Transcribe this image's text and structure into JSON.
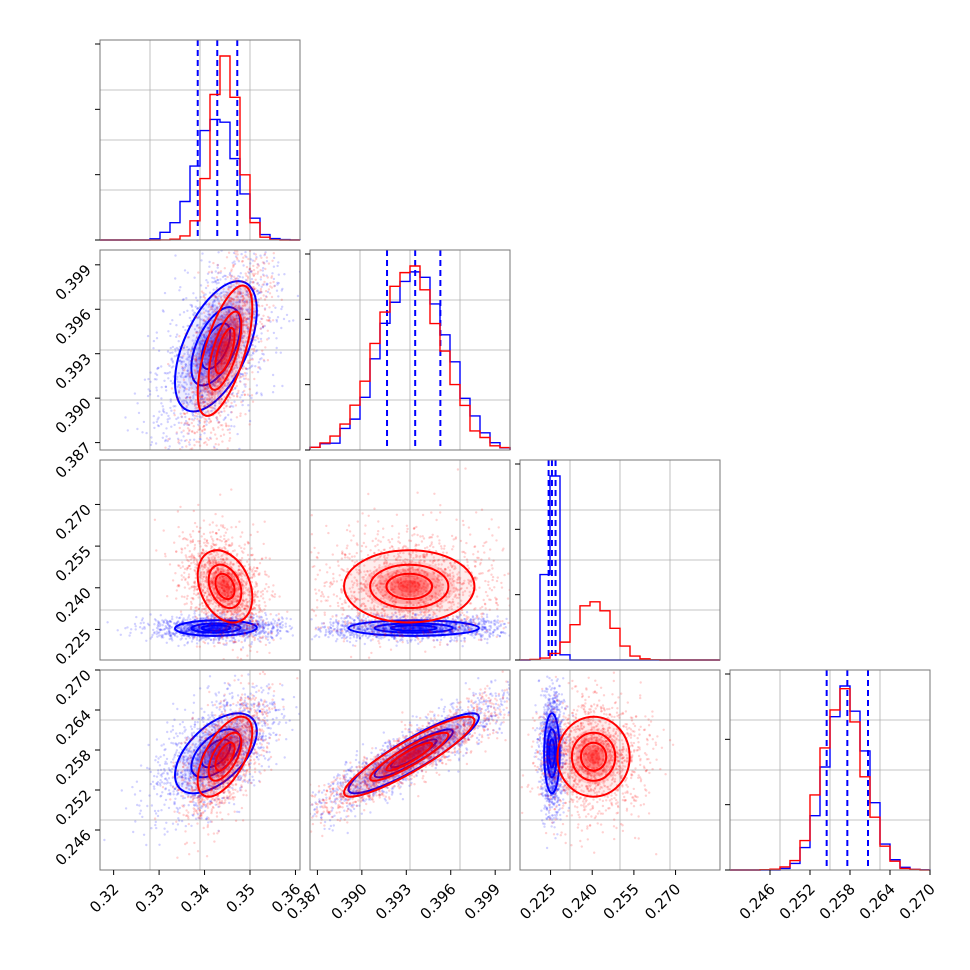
{
  "chart_data": {
    "type": "corner",
    "grid": true,
    "colors": {
      "series_a": "#0000ff",
      "series_b": "#ff0000"
    },
    "series": [
      {
        "key": "blue",
        "means": [
          0.3425,
          0.3935,
          0.2255,
          0.2575
        ],
        "sds": [
          0.0045,
          0.0022,
          0.0014,
          0.003
        ],
        "quantile_lines": [
          [
            0.3385,
            0.3428,
            0.3472
          ],
          [
            0.3917,
            0.3936,
            0.3953
          ],
          [
            0.2243,
            0.2255,
            0.2268
          ],
          [
            0.2545,
            0.2576,
            0.2607
          ]
        ]
      },
      {
        "key": "red",
        "means": [
          0.3445,
          0.3932,
          0.2405,
          0.257
        ],
        "sds": [
          0.003,
          0.0022,
          0.0065,
          0.003
        ],
        "quantile_lines": null
      }
    ],
    "correlations": {
      "blue": {
        "0-1": 0.55,
        "0-2": 0.05,
        "0-3": 0.55,
        "1-2": 0.0,
        "1-3": 0.9,
        "2-3": 0.0
      },
      "red": {
        "0-1": 0.65,
        "0-2": -0.3,
        "0-3": 0.6,
        "1-2": 0.0,
        "1-3": 0.9,
        "2-3": 0.0
      }
    },
    "axes": [
      {
        "range": [
          0.317,
          0.361
        ],
        "ticks": [
          "0.32",
          "0.33",
          "0.34",
          "0.35",
          "0.36"
        ]
      },
      {
        "range": [
          0.3865,
          0.4
        ],
        "ticks": [
          "0.387",
          "0.390",
          "0.393",
          "0.396",
          "0.399"
        ]
      },
      {
        "range": [
          0.214,
          0.286
        ],
        "ticks": [
          "0.225",
          "0.240",
          "0.255",
          "0.270"
        ]
      },
      {
        "range": [
          0.24,
          0.27
        ],
        "ticks": [
          "0.246",
          "0.252",
          "0.258",
          "0.264",
          "0.270"
        ]
      }
    ],
    "xlabels": [
      "",
      "",
      "",
      ""
    ],
    "ylabels": [
      "",
      "",
      "",
      ""
    ]
  }
}
